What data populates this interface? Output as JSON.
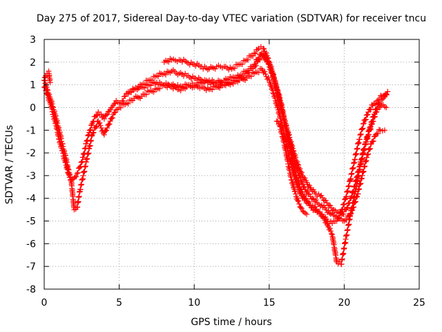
{
  "chart_data": {
    "type": "scatter",
    "title": "Day 275 of 2017, Sidereal Day-to-day VTEC variation (SDTVAR) for receiver tncu",
    "xlabel": "GPS time / hours",
    "ylabel": "SDTVAR / TECUs",
    "xlim": [
      0,
      25
    ],
    "ylim": [
      -8,
      3
    ],
    "xticks": [
      "0",
      "5",
      "10",
      "15",
      "20",
      "25"
    ],
    "yticks": [
      "3",
      "2",
      "1",
      "0",
      "-1",
      "-2",
      "-3",
      "-4",
      "-5",
      "-6",
      "-7",
      "-8"
    ],
    "grid": true,
    "marker": "+",
    "color": "#ff0000",
    "series": [
      {
        "x": [
          0.0,
          0.2,
          0.4,
          0.6,
          0.8,
          1.0,
          1.2,
          1.4,
          1.6,
          1.8,
          2.0,
          2.2,
          2.4,
          2.6,
          2.8,
          3.0,
          3.2,
          3.4,
          3.6,
          3.8,
          4.0,
          4.2,
          4.4,
          4.6,
          4.8,
          5.0,
          5.2,
          5.4,
          5.6,
          5.8,
          6.0,
          6.5,
          7.0,
          7.5,
          8.0,
          8.5,
          9.0,
          9.5,
          10.0,
          10.5,
          11.0,
          11.5,
          12.0,
          12.5,
          13.0,
          13.5,
          14.0,
          14.5,
          15.0,
          15.3,
          15.6,
          15.9,
          16.2,
          16.5,
          16.8,
          17.1,
          17.4,
          17.7,
          18.0,
          18.3,
          18.6,
          18.9,
          19.2,
          19.5,
          19.8,
          20.1,
          20.4,
          20.7,
          21.0,
          21.3,
          21.6,
          21.9,
          22.2,
          22.5,
          22.8
        ],
        "y": [
          0.9,
          0.6,
          0.2,
          -0.3,
          -0.8,
          -1.4,
          -1.9,
          -2.4,
          -2.9,
          -3.2,
          -3.1,
          -2.9,
          -2.6,
          -2.2,
          -1.6,
          -1.1,
          -0.7,
          -0.4,
          -0.2,
          -0.3,
          -0.5,
          -0.3,
          -0.1,
          0.1,
          0.3,
          0.2,
          0.3,
          0.5,
          0.6,
          0.7,
          0.8,
          0.9,
          1.0,
          1.1,
          1.0,
          1.0,
          0.9,
          1.0,
          1.0,
          1.1,
          1.2,
          1.1,
          1.2,
          1.3,
          1.4,
          1.6,
          1.9,
          2.4,
          1.9,
          1.3,
          0.6,
          -0.3,
          -1.3,
          -2.2,
          -3.0,
          -3.6,
          -4.0,
          -4.3,
          -4.5,
          -4.6,
          -4.8,
          -5.0,
          -5.1,
          -5.0,
          -4.6,
          -4.0,
          -3.2,
          -2.3,
          -1.4,
          -0.7,
          -0.2,
          0.1,
          0.3,
          0.5,
          0.6
        ]
      },
      {
        "x": [
          0.0,
          0.2,
          0.4,
          0.6,
          0.8,
          1.0,
          1.2,
          1.4,
          1.6,
          1.8,
          2.0,
          2.2,
          2.4,
          2.6,
          2.8,
          3.0,
          3.2,
          3.4,
          3.6,
          3.8,
          4.0,
          4.2,
          4.4,
          4.6,
          4.8,
          5.0,
          5.5,
          6.0,
          6.5,
          7.0,
          7.5,
          8.0,
          8.5,
          9.0,
          9.5,
          10.0,
          10.5,
          11.0,
          11.5,
          12.0,
          12.5,
          13.0,
          13.5,
          14.0,
          14.5,
          15.0,
          15.3,
          15.6,
          15.9,
          16.2,
          16.5,
          16.8,
          17.1,
          17.4,
          17.7,
          18.0,
          18.3,
          18.6,
          18.9,
          19.2,
          19.5,
          19.8,
          20.1,
          20.4,
          20.7,
          21.0,
          21.3,
          21.6,
          21.9,
          22.2,
          22.5,
          22.8
        ],
        "y": [
          1.2,
          0.8,
          0.4,
          0.0,
          -0.5,
          -1.0,
          -1.6,
          -2.1,
          -2.7,
          -3.2,
          -4.5,
          -4.4,
          -3.6,
          -3.0,
          -2.4,
          -1.8,
          -1.2,
          -0.9,
          -0.6,
          -0.9,
          -1.2,
          -0.9,
          -0.6,
          -0.3,
          -0.1,
          0.0,
          0.2,
          0.4,
          0.5,
          0.7,
          0.8,
          1.0,
          0.9,
          0.8,
          0.9,
          0.9,
          0.9,
          0.8,
          0.9,
          1.0,
          1.1,
          1.2,
          1.3,
          1.5,
          1.7,
          1.2,
          0.6,
          -0.1,
          -0.9,
          -1.8,
          -2.6,
          -3.3,
          -3.8,
          -4.1,
          -4.3,
          -4.4,
          -4.6,
          -4.8,
          -5.2,
          -5.6,
          -6.8,
          -6.9,
          -5.8,
          -4.8,
          -3.8,
          -2.8,
          -1.9,
          -1.2,
          -0.6,
          -0.1,
          0.1,
          0.0
        ]
      },
      {
        "x": [
          5.5,
          6.0,
          6.5,
          7.0,
          7.5,
          8.0,
          8.5,
          9.0,
          9.5,
          10.0,
          10.5,
          11.0,
          11.5,
          12.0,
          12.5,
          13.0,
          13.5,
          14.0,
          14.3,
          14.6,
          14.9,
          15.2,
          15.5,
          15.8,
          16.1,
          16.4,
          16.7,
          17.0,
          17.3,
          17.6,
          17.9,
          18.2,
          18.5,
          18.8,
          19.1,
          19.4,
          19.7,
          20.0,
          20.3,
          20.6,
          20.9,
          21.2,
          21.5,
          21.8,
          22.1,
          22.4,
          22.7
        ],
        "y": [
          0.6,
          0.8,
          1.0,
          1.2,
          1.4,
          1.5,
          1.6,
          1.5,
          1.4,
          1.3,
          1.2,
          1.1,
          1.0,
          1.0,
          1.1,
          1.3,
          1.5,
          1.8,
          2.1,
          2.3,
          2.0,
          1.5,
          0.8,
          0.0,
          -0.8,
          -1.6,
          -2.4,
          -3.0,
          -3.5,
          -3.8,
          -4.0,
          -4.2,
          -4.3,
          -4.5,
          -4.7,
          -4.8,
          -4.9,
          -5.0,
          -4.8,
          -4.4,
          -3.8,
          -3.0,
          -2.2,
          -1.6,
          -1.2,
          -1.0,
          -1.0
        ]
      },
      {
        "x": [
          8.0,
          8.5,
          9.0,
          9.5,
          10.0,
          10.5,
          11.0,
          11.5,
          12.0,
          12.5,
          13.0,
          13.5,
          14.0,
          14.3,
          14.6,
          14.9,
          15.2,
          15.5,
          15.8,
          16.0,
          16.3,
          16.6,
          16.9,
          17.2,
          17.5,
          17.8,
          18.1,
          18.4,
          18.7,
          19.0,
          19.3,
          19.6,
          19.9,
          20.2,
          20.5,
          20.8,
          21.1,
          21.4,
          21.7,
          22.0,
          22.3,
          22.6,
          22.9
        ],
        "y": [
          2.0,
          2.1,
          2.1,
          2.0,
          1.9,
          1.8,
          1.7,
          1.8,
          1.8,
          1.7,
          1.9,
          2.1,
          2.4,
          2.6,
          2.6,
          2.2,
          1.6,
          0.9,
          0.2,
          -0.5,
          -1.2,
          -1.9,
          -2.5,
          -3.0,
          -3.3,
          -3.6,
          -3.8,
          -3.9,
          -4.1,
          -4.3,
          -4.5,
          -4.6,
          -4.7,
          -4.4,
          -3.9,
          -3.2,
          -2.4,
          -1.6,
          -0.9,
          -0.3,
          0.2,
          0.4,
          0.7
        ]
      },
      {
        "x": [
          0.0,
          0.1,
          0.2,
          0.3,
          0.35,
          0.4
        ],
        "y": [
          1.2,
          1.4,
          1.5,
          1.6,
          1.3,
          1.1
        ]
      },
      {
        "x": [
          15.5,
          15.7,
          15.9,
          16.1,
          16.3,
          16.5,
          16.7,
          16.9,
          17.1,
          17.3,
          17.5
        ],
        "y": [
          -0.6,
          -0.8,
          -1.3,
          -1.9,
          -2.6,
          -3.2,
          -3.7,
          -4.1,
          -4.4,
          -4.6,
          -4.7
        ]
      }
    ]
  }
}
